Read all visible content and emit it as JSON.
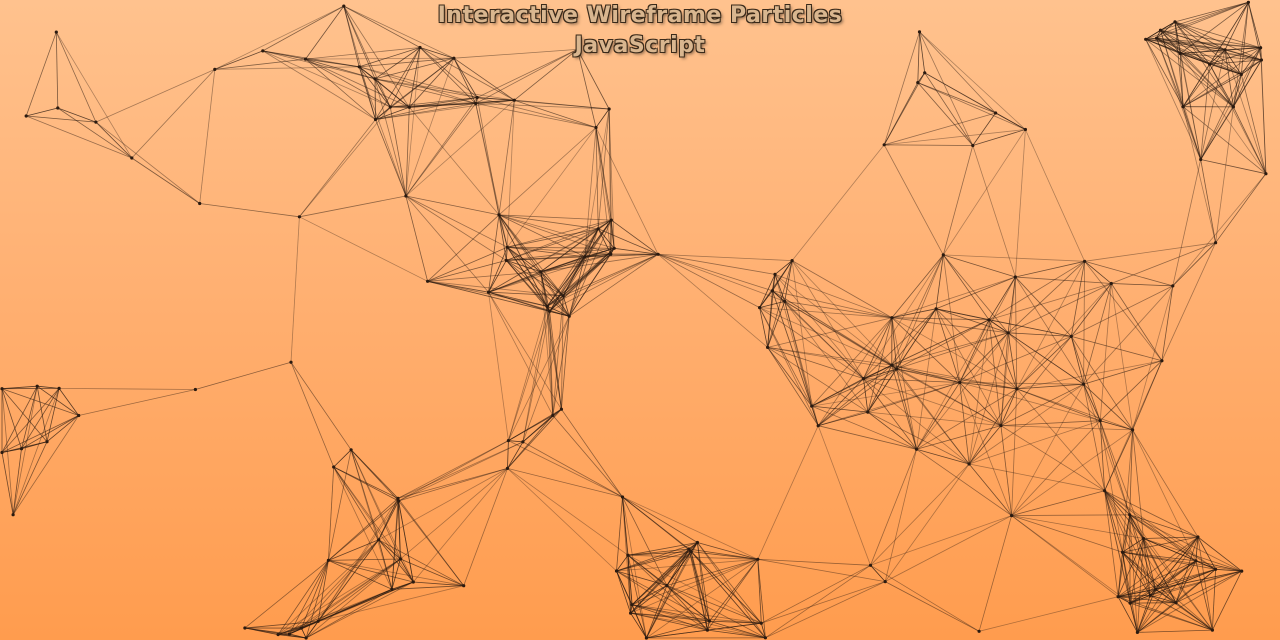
{
  "page": {
    "title_line_1": "Interactive Wireframe Particles",
    "title_line_2": "JavaScript"
  },
  "style": {
    "background_top": "#ffc28e",
    "background_bottom": "#ff9c4e",
    "line_color": "#2a1a10",
    "point_color": "#2a1a10",
    "title_fill": "#d9b68f",
    "title_outline": "#3a2a1a"
  },
  "particle_field": {
    "particle_count": 160,
    "link_distance": 150
  }
}
